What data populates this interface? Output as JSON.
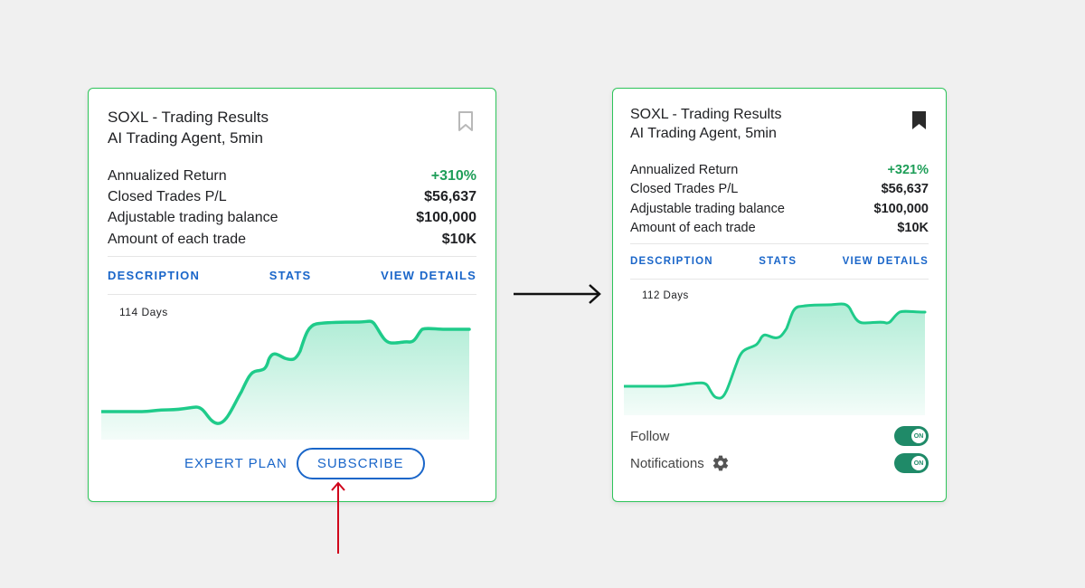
{
  "cards": [
    {
      "title_line1": "SOXL - Trading Results",
      "title_line2": "AI Trading Agent, 5min",
      "bookmark_icon": "bookmark-outline-icon",
      "stats": [
        {
          "label": "Annualized Return",
          "value": "+310%"
        },
        {
          "label": "Closed Trades P/L",
          "value": "$56,637"
        },
        {
          "label": "Adjustable trading balance",
          "value": "$100,000"
        },
        {
          "label": "Amount of each trade",
          "value": "$10K"
        }
      ],
      "tabs": [
        "DESCRIPTION",
        "STATS",
        "VIEW DETAILS"
      ],
      "days_label": "114 Days",
      "expert_plan_label": "EXPERT PLAN",
      "subscribe_label": "SUBSCRIBE"
    },
    {
      "title_line1": "SOXL - Trading Results",
      "title_line2": "AI Trading Agent, 5min",
      "bookmark_icon": "bookmark-filled-icon",
      "stats": [
        {
          "label": "Annualized Return",
          "value": "+321%"
        },
        {
          "label": "Closed Trades P/L",
          "value": "$56,637"
        },
        {
          "label": "Adjustable trading balance",
          "value": "$100,000"
        },
        {
          "label": "Amount of each trade",
          "value": "$10K"
        }
      ],
      "tabs": [
        "DESCRIPTION",
        "STATS",
        "VIEW DETAILS"
      ],
      "days_label": "112 Days",
      "follow_label": "Follow",
      "notifications_label": "Notifications",
      "toggle_on_label": "ON"
    }
  ],
  "colors": {
    "accent_blue": "#1a66c9",
    "positive_green": "#1e9e58",
    "chart_line": "#1fcb8a",
    "card_border": "#2ec45a",
    "toggle_on": "#1f8a68",
    "annotation_arrow_red": "#d0021b",
    "flow_arrow": "#111111"
  }
}
